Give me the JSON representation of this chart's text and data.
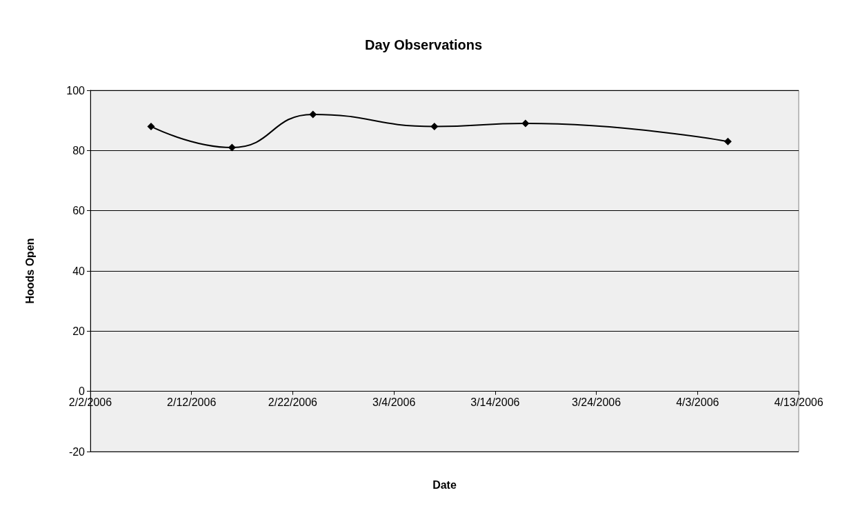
{
  "chart_data": {
    "type": "line",
    "title": "Day Observations",
    "xlabel": "Date",
    "ylabel": "Hoods Open",
    "x": [
      "2006-02-08",
      "2006-02-16",
      "2006-02-24",
      "2006-03-08",
      "2006-03-17",
      "2006-04-06"
    ],
    "series": [
      {
        "color": "#000000",
        "values": [
          88,
          81,
          92,
          88,
          89,
          83
        ]
      }
    ],
    "xlim": [
      "2006-02-02",
      "2006-04-13"
    ],
    "xticks": [
      {
        "value": "2006-02-02",
        "label": "2/2/2006"
      },
      {
        "value": "2006-02-12",
        "label": "2/12/2006"
      },
      {
        "value": "2006-02-22",
        "label": "2/22/2006"
      },
      {
        "value": "2006-03-04",
        "label": "3/4/2006"
      },
      {
        "value": "2006-03-14",
        "label": "3/14/2006"
      },
      {
        "value": "2006-03-24",
        "label": "3/24/2006"
      },
      {
        "value": "2006-04-03",
        "label": "4/3/2006"
      },
      {
        "value": "2006-04-13",
        "label": "4/13/2006"
      }
    ],
    "ylim": [
      -20,
      100
    ],
    "yticks": [
      -20,
      0,
      20,
      40,
      60,
      80,
      100
    ],
    "grid": "y",
    "marker": "diamond",
    "line_style": "solid"
  }
}
